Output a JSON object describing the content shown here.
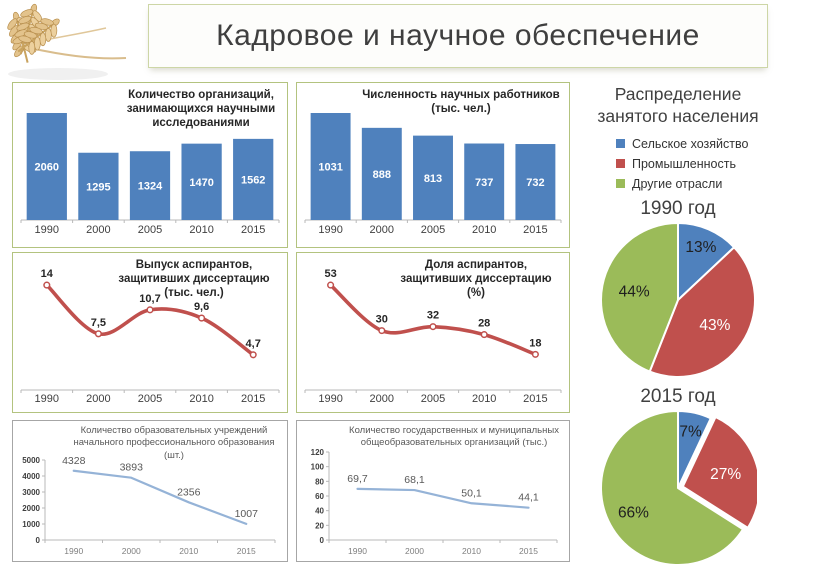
{
  "slide_title": "Кадровое и научное обеспечение",
  "right_panel": {
    "title": "Распределение занятого населения",
    "legend": [
      {
        "label": "Сельское хозяйство",
        "color": "#4f81bd"
      },
      {
        "label": "Промышленность",
        "color": "#c0504d"
      },
      {
        "label": "Другие отрасли",
        "color": "#9bbb59"
      }
    ]
  },
  "colors": {
    "bar_blue": "#4f81bd",
    "line_red": "#c0504d",
    "pie_green": "#9bbb59",
    "line_light_blue": "#95b3d7",
    "panel_border_olive": "#b3c37f",
    "panel_border_gray": "#a6a6a6"
  },
  "chart_data": [
    {
      "id": "research-orgs",
      "type": "bar",
      "title": "Количество организаций, занимающихся научными исследованиями",
      "categories": [
        "1990",
        "2000",
        "2005",
        "2010",
        "2015"
      ],
      "values": [
        2060,
        1295,
        1324,
        1470,
        1562
      ],
      "value_labels": [
        "2060",
        "1295",
        "1324",
        "1470",
        "1562"
      ],
      "ylim": [
        0,
        2060
      ],
      "bar_color": "#4f81bd",
      "value_label_color": "#ffffff"
    },
    {
      "id": "scientists",
      "type": "bar",
      "title": "Численность научных работников (тыс. чел.)",
      "categories": [
        "1990",
        "2000",
        "2005",
        "2010",
        "2015"
      ],
      "values": [
        1031,
        888,
        813,
        737,
        732
      ],
      "value_labels": [
        "1031",
        "888",
        "813",
        "737",
        "732"
      ],
      "ylim": [
        0,
        1031
      ],
      "bar_color": "#4f81bd",
      "value_label_color": "#ffffff"
    },
    {
      "id": "phd-defended",
      "type": "line",
      "title": "Выпуск аспирантов, защитивших диссертацию (тыс. чел.)",
      "categories": [
        "1990",
        "2000",
        "2005",
        "2010",
        "2015"
      ],
      "values": [
        14,
        7.5,
        10.7,
        9.6,
        4.7
      ],
      "value_labels": [
        "14",
        "7,5",
        "10,7",
        "9,6",
        "4,7"
      ],
      "line_color": "#c0504d",
      "smooth": true,
      "markers": true
    },
    {
      "id": "phd-share",
      "type": "line",
      "title": "Доля аспирантов, защитивших диссертацию (%)",
      "categories": [
        "1990",
        "2000",
        "2005",
        "2010",
        "2015"
      ],
      "values": [
        53,
        30,
        32,
        28,
        18
      ],
      "value_labels": [
        "53",
        "30",
        "32",
        "28",
        "18"
      ],
      "line_color": "#c0504d",
      "smooth": true,
      "markers": true
    },
    {
      "id": "vocational-schools",
      "type": "line",
      "title": "Количество образовательных учреждений начального профессионального образования (шт.)",
      "categories": [
        "1990",
        "2000",
        "2010",
        "2015"
      ],
      "values": [
        4328,
        3893,
        2356,
        1007
      ],
      "value_labels": [
        "4328",
        "3893",
        "2356",
        "1007"
      ],
      "line_color": "#95b3d7",
      "smooth": false,
      "markers": false,
      "ylim": [
        0,
        5000
      ],
      "yticks": [
        0,
        1000,
        2000,
        3000,
        4000,
        5000
      ],
      "plot_top": 39
    },
    {
      "id": "state-schools",
      "type": "line",
      "title": "Количество государственных и муниципальных общеобразовательных организаций (тыс.)",
      "categories": [
        "1990",
        "2000",
        "2010",
        "2015"
      ],
      "values": [
        69.7,
        68.1,
        50.1,
        44.1
      ],
      "value_labels": [
        "69,7",
        "68,1",
        "50,1",
        "44,1"
      ],
      "line_color": "#95b3d7",
      "smooth": false,
      "markers": false,
      "ylim": [
        0,
        120
      ],
      "yticks": [
        0,
        20,
        40,
        60,
        80,
        100,
        120
      ],
      "plot_top": 31
    },
    {
      "id": "pie-1990",
      "type": "pie",
      "title": "1990 год",
      "labels": [
        "Сельское хозяйство",
        "Промышленность",
        "Другие отрасли"
      ],
      "values": [
        13,
        43,
        44
      ],
      "value_labels": [
        "13%",
        "43%",
        "44%"
      ],
      "colors": [
        "#4f81bd",
        "#c0504d",
        "#9bbb59"
      ],
      "label_colors": [
        "#1f1f1f",
        "#ffffff",
        "#1f1f1f"
      ]
    },
    {
      "id": "pie-2015",
      "type": "pie",
      "title": "2015 год",
      "labels": [
        "Сельское хозяйство",
        "Промышленность",
        "Другие отрасли"
      ],
      "values": [
        7,
        27,
        66
      ],
      "value_labels": [
        "7%",
        "27%",
        "66%"
      ],
      "colors": [
        "#4f81bd",
        "#c0504d",
        "#9bbb59"
      ],
      "label_colors": [
        "#1f1f1f",
        "#ffffff",
        "#1f1f1f"
      ],
      "exploded_slice": 1
    }
  ]
}
